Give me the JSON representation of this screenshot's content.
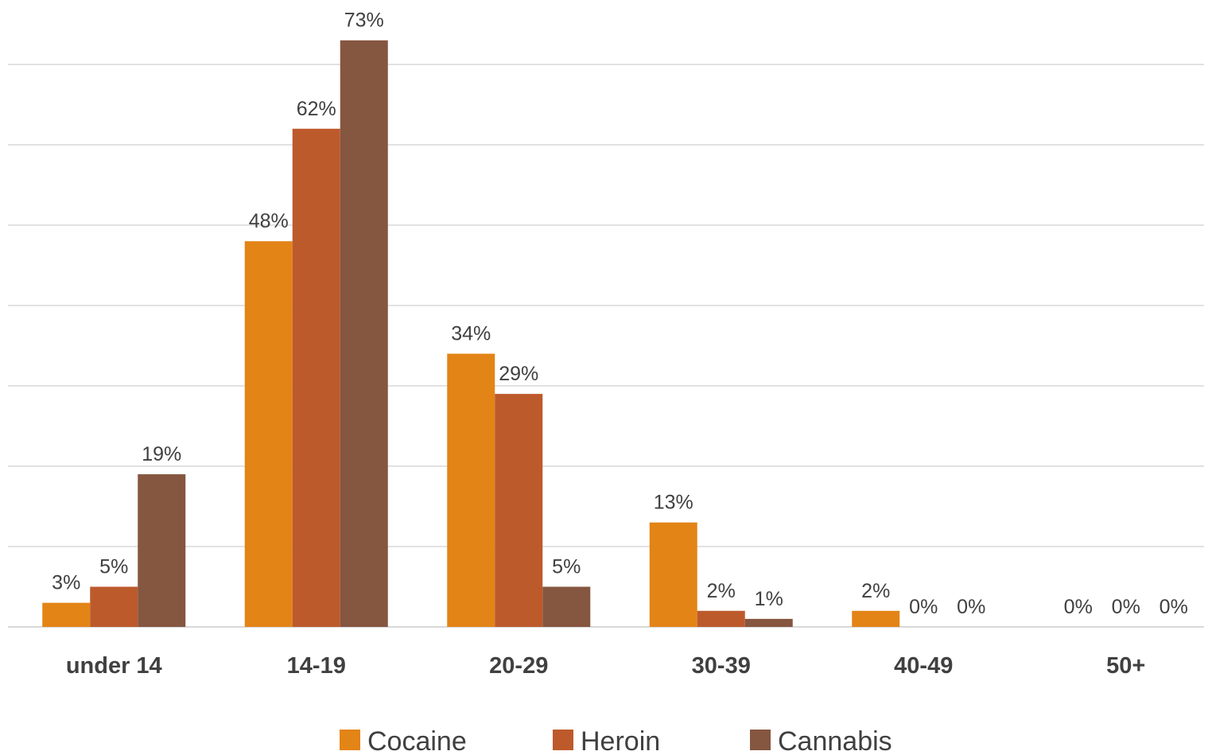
{
  "chart_data": {
    "type": "bar",
    "title": "",
    "xlabel": "",
    "ylabel": "",
    "categories": [
      "under 14",
      "14-19",
      "20-29",
      "30-39",
      "40-49",
      "50+"
    ],
    "series": [
      {
        "name": "Cocaine",
        "values": [
          3,
          48,
          34,
          13,
          2,
          0
        ],
        "labels": [
          "3%",
          "48%",
          "34%",
          "13%",
          "2%",
          "0%"
        ],
        "color": "#e38417"
      },
      {
        "name": "Heroin",
        "values": [
          5,
          62,
          29,
          2,
          0,
          0
        ],
        "labels": [
          "5%",
          "62%",
          "29%",
          "2%",
          "0%",
          "0%"
        ],
        "color": "#bd5a2c"
      },
      {
        "name": "Cannabis",
        "values": [
          19,
          73,
          5,
          1,
          0,
          0
        ],
        "labels": [
          "19%",
          "73%",
          "5%",
          "1%",
          "0%",
          "0%"
        ],
        "color": "#855640"
      }
    ],
    "ylim": [
      0,
      70
    ],
    "gridlines": [
      0,
      10,
      20,
      30,
      40,
      50,
      60,
      70
    ],
    "grid": true,
    "y_axis_labels_shown": false,
    "legend_position": "bottom"
  }
}
